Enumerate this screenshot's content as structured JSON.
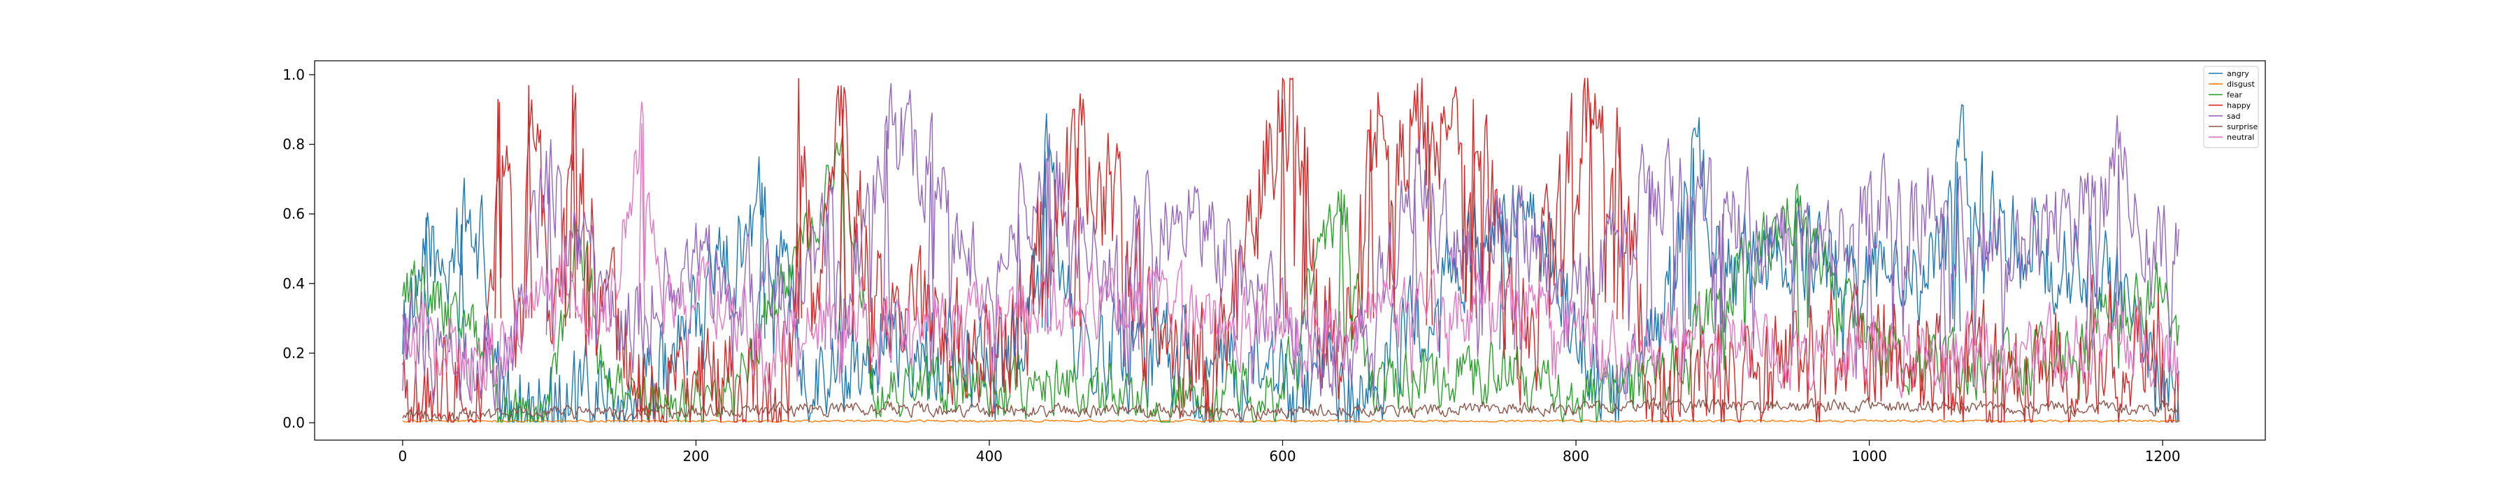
{
  "chart_data": {
    "type": "line",
    "title": "",
    "xlabel": "",
    "ylabel": "",
    "xlim": [
      -60,
      1270
    ],
    "ylim": [
      -0.05,
      1.04
    ],
    "x_ticks": [
      0,
      200,
      400,
      600,
      800,
      1000,
      1200
    ],
    "y_ticks": [
      0.0,
      0.2,
      0.4,
      0.6,
      0.8,
      1.0
    ],
    "x_tick_labels": [
      "0",
      "200",
      "400",
      "600",
      "800",
      "1000",
      "1200"
    ],
    "y_tick_labels": [
      "0.0",
      "0.2",
      "0.4",
      "0.6",
      "0.8",
      "1.0"
    ],
    "grid": false,
    "legend_position": "top-right",
    "n_points": 1212,
    "series": [
      {
        "name": "angry",
        "color": "#1f77b4",
        "keypoints": [
          [
            0,
            0.3
          ],
          [
            12,
            0.32
          ],
          [
            16,
            0.59
          ],
          [
            25,
            0.38
          ],
          [
            40,
            0.57
          ],
          [
            55,
            0.5
          ],
          [
            62,
            0.1
          ],
          [
            70,
            0.03
          ],
          [
            100,
            0.05
          ],
          [
            150,
            0.08
          ],
          [
            180,
            0.15
          ],
          [
            210,
            0.4
          ],
          [
            230,
            0.5
          ],
          [
            245,
            0.69
          ],
          [
            260,
            0.4
          ],
          [
            275,
            0.12
          ],
          [
            300,
            0.2
          ],
          [
            350,
            0.25
          ],
          [
            410,
            0.15
          ],
          [
            435,
            0.4
          ],
          [
            438,
            0.78
          ],
          [
            460,
            0.2
          ],
          [
            520,
            0.2
          ],
          [
            600,
            0.1
          ],
          [
            650,
            0.05
          ],
          [
            690,
            0.3
          ],
          [
            750,
            0.6
          ],
          [
            790,
            0.4
          ],
          [
            820,
            0.05
          ],
          [
            860,
            0.3
          ],
          [
            880,
            0.79
          ],
          [
            900,
            0.4
          ],
          [
            950,
            0.5
          ],
          [
            1000,
            0.4
          ],
          [
            1050,
            0.45
          ],
          [
            1060,
            0.75
          ],
          [
            1100,
            0.5
          ],
          [
            1150,
            0.45
          ],
          [
            1180,
            0.3
          ],
          [
            1200,
            0.1
          ],
          [
            1211,
            0.1
          ]
        ],
        "volatility": 0.22,
        "dip_prob": 0.03
      },
      {
        "name": "disgust",
        "color": "#ff7f0e",
        "keypoints": [
          [
            0,
            0.005
          ],
          [
            1211,
            0.005
          ]
        ],
        "volatility": 0.005,
        "dip_prob": 0.0
      },
      {
        "name": "fear",
        "color": "#2ca02c",
        "keypoints": [
          [
            0,
            0.33
          ],
          [
            5,
            0.42
          ],
          [
            30,
            0.3
          ],
          [
            60,
            0.2
          ],
          [
            62,
            0.02
          ],
          [
            100,
            0.05
          ],
          [
            120,
            0.55
          ],
          [
            140,
            0.1
          ],
          [
            180,
            0.05
          ],
          [
            220,
            0.06
          ],
          [
            300,
            0.76
          ],
          [
            320,
            0.1
          ],
          [
            400,
            0.1
          ],
          [
            460,
            0.1
          ],
          [
            520,
            0.05
          ],
          [
            600,
            0.1
          ],
          [
            640,
            0.67
          ],
          [
            660,
            0.1
          ],
          [
            750,
            0.15
          ],
          [
            800,
            0.05
          ],
          [
            850,
            0.1
          ],
          [
            950,
            0.63
          ],
          [
            1000,
            0.2
          ],
          [
            1100,
            0.15
          ],
          [
            1200,
            0.38
          ],
          [
            1211,
            0.2
          ]
        ],
        "volatility": 0.14,
        "dip_prob": 0.02
      },
      {
        "name": "happy",
        "color": "#d62728",
        "keypoints": [
          [
            0,
            0.02
          ],
          [
            20,
            0.06
          ],
          [
            50,
            0.03
          ],
          [
            60,
            0.3
          ],
          [
            65,
            0.93
          ],
          [
            80,
            0.2
          ],
          [
            86,
            0.97
          ],
          [
            100,
            0.3
          ],
          [
            116,
            0.97
          ],
          [
            130,
            0.45
          ],
          [
            160,
            0.1
          ],
          [
            180,
            0.05
          ],
          [
            200,
            0.12
          ],
          [
            240,
            0.05
          ],
          [
            265,
            0.2
          ],
          [
            270,
            0.99
          ],
          [
            280,
            0.3
          ],
          [
            300,
            0.9
          ],
          [
            320,
            0.3
          ],
          [
            340,
            0.3
          ],
          [
            400,
            0.15
          ],
          [
            460,
            0.79
          ],
          [
            520,
            0.3
          ],
          [
            550,
            0.1
          ],
          [
            600,
            0.93
          ],
          [
            615,
            0.85
          ],
          [
            620,
            0.35
          ],
          [
            640,
            0.2
          ],
          [
            660,
            0.9
          ],
          [
            700,
            0.8
          ],
          [
            730,
            0.93
          ],
          [
            760,
            0.2
          ],
          [
            810,
            0.92
          ],
          [
            830,
            0.85
          ],
          [
            850,
            0.1
          ],
          [
            900,
            0.1
          ],
          [
            1000,
            0.2
          ],
          [
            1100,
            0.1
          ],
          [
            1150,
            0.25
          ],
          [
            1200,
            0.2
          ],
          [
            1211,
            0.05
          ]
        ],
        "volatility": 0.3,
        "dip_prob": 0.07
      },
      {
        "name": "sad",
        "color": "#9467bd",
        "keypoints": [
          [
            0,
            0.15
          ],
          [
            10,
            0.25
          ],
          [
            40,
            0.2
          ],
          [
            70,
            0.2
          ],
          [
            100,
            0.72
          ],
          [
            130,
            0.4
          ],
          [
            160,
            0.3
          ],
          [
            200,
            0.5
          ],
          [
            230,
            0.4
          ],
          [
            270,
            0.4
          ],
          [
            290,
            0.6
          ],
          [
            300,
            0.3
          ],
          [
            330,
            0.84
          ],
          [
            360,
            0.75
          ],
          [
            400,
            0.4
          ],
          [
            420,
            0.6
          ],
          [
            440,
            0.75
          ],
          [
            480,
            0.4
          ],
          [
            500,
            0.6
          ],
          [
            560,
            0.5
          ],
          [
            600,
            0.3
          ],
          [
            650,
            0.2
          ],
          [
            690,
            0.7
          ],
          [
            720,
            0.5
          ],
          [
            760,
            0.6
          ],
          [
            800,
            0.3
          ],
          [
            850,
            0.7
          ],
          [
            900,
            0.6
          ],
          [
            950,
            0.5
          ],
          [
            1000,
            0.6
          ],
          [
            1050,
            0.6
          ],
          [
            1100,
            0.5
          ],
          [
            1150,
            0.6
          ],
          [
            1170,
            0.77
          ],
          [
            1190,
            0.45
          ],
          [
            1211,
            0.5
          ]
        ],
        "volatility": 0.22,
        "dip_prob": 0.04
      },
      {
        "name": "surprise",
        "color": "#8c564b",
        "keypoints": [
          [
            0,
            0.02
          ],
          [
            300,
            0.04
          ],
          [
            600,
            0.03
          ],
          [
            900,
            0.05
          ],
          [
            1211,
            0.04
          ]
        ],
        "volatility": 0.03,
        "dip_prob": 0.0
      },
      {
        "name": "neutral",
        "color": "#e377c2",
        "keypoints": [
          [
            0,
            0.25
          ],
          [
            10,
            0.3
          ],
          [
            50,
            0.15
          ],
          [
            80,
            0.3
          ],
          [
            110,
            0.4
          ],
          [
            140,
            0.3
          ],
          [
            163,
            0.86
          ],
          [
            175,
            0.3
          ],
          [
            200,
            0.4
          ],
          [
            230,
            0.3
          ],
          [
            250,
            0.2
          ],
          [
            280,
            0.3
          ],
          [
            330,
            0.3
          ],
          [
            400,
            0.3
          ],
          [
            450,
            0.35
          ],
          [
            500,
            0.35
          ],
          [
            560,
            0.3
          ],
          [
            620,
            0.25
          ],
          [
            670,
            0.3
          ],
          [
            720,
            0.3
          ],
          [
            780,
            0.35
          ],
          [
            820,
            0.2
          ],
          [
            880,
            0.25
          ],
          [
            950,
            0.2
          ],
          [
            1000,
            0.2
          ],
          [
            1100,
            0.2
          ],
          [
            1160,
            0.25
          ],
          [
            1211,
            0.2
          ]
        ],
        "volatility": 0.16,
        "dip_prob": 0.03
      }
    ]
  }
}
